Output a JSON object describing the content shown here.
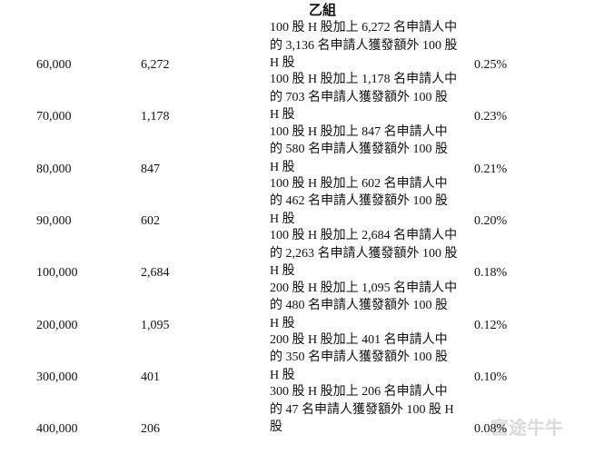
{
  "header": {
    "title": "乙組"
  },
  "table": {
    "rows": [
      [
        "60,000",
        "6,272",
        [
          "100 股 H 股加上 6,272 名申請人中",
          "的 3,136 名申請人獲發額外 100 股",
          "H 股"
        ],
        "0.25%"
      ],
      [
        "70,000",
        "1,178",
        [
          "100 股 H 股加上 1,178 名申請人中",
          "的 703 名申請人獲發額外 100 股",
          "H 股"
        ],
        "0.23%"
      ],
      [
        "80,000",
        "847",
        [
          "100 股 H 股加上 847 名申請人中",
          "的 580 名申請人獲發額外 100 股",
          "H 股"
        ],
        "0.21%"
      ],
      [
        "90,000",
        "602",
        [
          "100 股 H 股加上 602 名申請人中",
          "的 462 名申請人獲發額外 100 股",
          "H 股"
        ],
        "0.20%"
      ],
      [
        "100,000",
        "2,684",
        [
          "100 股 H 股加上 2,684 名申請人中",
          "的 2,263 名申請人獲發額外 100 股",
          "H 股"
        ],
        "0.18%"
      ],
      [
        "200,000",
        "1,095",
        [
          "200 股 H 股加上 1,095 名申請人中",
          "的 480 名申請人獲發額外 100 股",
          "H 股"
        ],
        "0.12%"
      ],
      [
        "300,000",
        "401",
        [
          "200 股 H 股加上 401 名申請人中",
          "的 350 名申請人獲發額外 100 股",
          "H 股"
        ],
        "0.10%"
      ],
      [
        "400,000",
        "206",
        [
          "300 股 H 股加上 206 名申請人中",
          "的 47 名申請人獲發額外 100 股 H",
          "股"
        ],
        "0.08%"
      ]
    ]
  },
  "watermark": "富途牛牛"
}
